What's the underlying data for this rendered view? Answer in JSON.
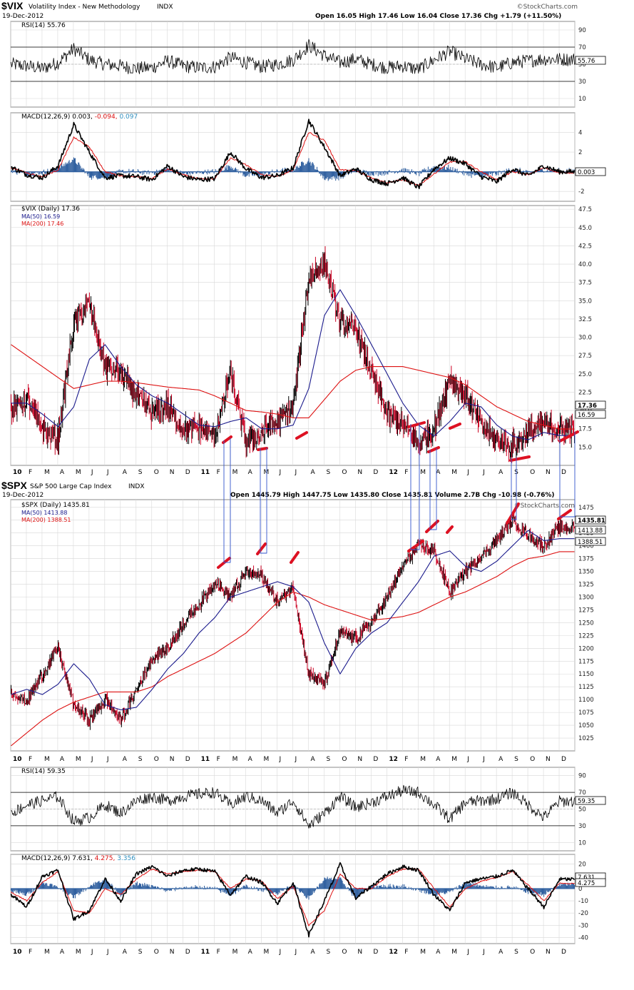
{
  "colors": {
    "price_up": "#000000",
    "price_down": "#cc0022",
    "ma50": "#1a1a8c",
    "ma200": "#dd1111",
    "macd_line": "#000000",
    "macd_signal": "#dd1111",
    "macd_hist": "#2f5f9f",
    "annotation_red": "#dd1122",
    "annotation_blue": "#3355cc",
    "grid": "#d8d8d8"
  },
  "vix": {
    "symbol": "$VIX",
    "name": "Volatility Index - New Methodology",
    "exchange": "INDX",
    "date": "19-Dec-2012",
    "quote": "Open 16.05  High 17.46  Low 16.04  Close 17.36  Chg +1.79 (+11.50%)",
    "watermark": "©StockCharts.com",
    "rsi_title": "RSI(14) 55.76",
    "rsi_value": "55.76",
    "macd_title_a": "MACD(12,26,9) 0.003, ",
    "macd_title_b": "-0.094, ",
    "macd_title_c": "0.097",
    "macd_value": "0.003",
    "main_title": "$VIX (Daily) 17.36",
    "ma50_label": "MA(50) 16.59",
    "ma200_label": "MA(200) 17.46",
    "last_price": "17.36",
    "last_ma50": "16.59"
  },
  "spx": {
    "symbol": "$SPX",
    "name": "S&P 500 Large Cap Index",
    "exchange": "INDX",
    "date": "19-Dec-2012",
    "quote": "Open 1445.79  High 1447.75  Low 1435.80  Close 1435.81  Volume 2.7B  Chg -10.98 (-0.76%)",
    "watermark": "©StockCharts.com",
    "main_title": "$SPX (Daily) 1435.81",
    "ma50_label": "MA(50) 1413.88",
    "ma200_label": "MA(200) 1388.51",
    "last_price": "1435.81",
    "last_ma50": "1413.88",
    "last_ma200": "1388.51",
    "rsi_title": "RSI(14) 59.35",
    "rsi_value": "59.35",
    "macd_title_a": "MACD(12,26,9) 7.631, ",
    "macd_title_b": "4.275, ",
    "macd_title_c": "3.356",
    "macd_value": "7.631",
    "macd_value2": "4.275"
  },
  "x_axis": {
    "labels": [
      "10",
      "F",
      "M",
      "A",
      "M",
      "J",
      "J",
      "A",
      "S",
      "O",
      "N",
      "D",
      "11",
      "F",
      "M",
      "A",
      "M",
      "J",
      "J",
      "A",
      "S",
      "O",
      "N",
      "D",
      "12",
      "F",
      "M",
      "A",
      "M",
      "J",
      "J",
      "A",
      "S",
      "O",
      "N",
      "D"
    ]
  },
  "chart_data": [
    {
      "type": "line",
      "title": "RSI(14) 55.76",
      "ylim": [
        0,
        100
      ],
      "yticks": [
        10,
        30,
        50,
        70,
        90
      ],
      "reference_lines": [
        30,
        70
      ],
      "x": [
        "2010-01",
        "2010-02",
        "2010-03",
        "2010-04",
        "2010-05",
        "2010-06",
        "2010-07",
        "2010-08",
        "2010-09",
        "2010-10",
        "2010-11",
        "2010-12",
        "2011-01",
        "2011-02",
        "2011-03",
        "2011-04",
        "2011-05",
        "2011-06",
        "2011-07",
        "2011-08",
        "2011-09",
        "2011-10",
        "2011-11",
        "2011-12",
        "2012-01",
        "2012-02",
        "2012-03",
        "2012-04",
        "2012-05",
        "2012-06",
        "2012-07",
        "2012-08",
        "2012-09",
        "2012-10",
        "2012-11",
        "2012-12"
      ],
      "values": [
        50,
        48,
        45,
        52,
        68,
        55,
        50,
        48,
        45,
        46,
        54,
        48,
        46,
        47,
        58,
        52,
        47,
        50,
        55,
        72,
        60,
        52,
        56,
        50,
        46,
        48,
        44,
        55,
        65,
        56,
        50,
        46,
        52,
        54,
        56,
        55.76
      ]
    },
    {
      "type": "line",
      "title": "MACD(12,26,9) 0.003, -0.094, 0.097",
      "ylim": [
        -3,
        6
      ],
      "yticks": [
        -2,
        0,
        2,
        4
      ],
      "series": [
        {
          "name": "MACD",
          "values": [
            0.5,
            -0.3,
            -0.6,
            0.6,
            4.8,
            2.0,
            -0.6,
            -0.4,
            -0.5,
            -0.8,
            0.6,
            -0.5,
            -0.8,
            -0.7,
            2.0,
            0.3,
            -0.6,
            -0.4,
            0.4,
            5.2,
            2.5,
            -0.4,
            0.3,
            -0.8,
            -1.2,
            -0.6,
            -1.6,
            0.3,
            1.4,
            0.8,
            -0.5,
            -1.0,
            0.3,
            -0.4,
            0.6,
            0.003
          ]
        },
        {
          "name": "Signal",
          "values": [
            0.4,
            -0.1,
            -0.5,
            0.2,
            3.5,
            2.5,
            0.0,
            -0.4,
            -0.5,
            -0.7,
            0.3,
            -0.3,
            -0.7,
            -0.7,
            1.4,
            0.7,
            -0.3,
            -0.5,
            0.2,
            4.0,
            3.2,
            0.2,
            0.1,
            -0.6,
            -1.1,
            -0.8,
            -1.4,
            -0.2,
            1.0,
            1.0,
            0.0,
            -0.8,
            0.0,
            -0.3,
            0.4,
            -0.094
          ]
        }
      ]
    },
    {
      "type": "line",
      "title": "$VIX (Daily) 17.36",
      "ylim": [
        12.5,
        48
      ],
      "yticks": [
        15.0,
        17.5,
        20.0,
        22.5,
        25.0,
        27.5,
        30.0,
        32.5,
        35.0,
        37.5,
        40.0,
        42.5,
        45.0,
        47.5
      ],
      "x": [
        "2010-01",
        "2010-02",
        "2010-03",
        "2010-04",
        "2010-05",
        "2010-06",
        "2010-07",
        "2010-08",
        "2010-09",
        "2010-10",
        "2010-11",
        "2010-12",
        "2011-01",
        "2011-02",
        "2011-03",
        "2011-04",
        "2011-05",
        "2011-06",
        "2011-07",
        "2011-08",
        "2011-09",
        "2011-10",
        "2011-11",
        "2011-12",
        "2012-01",
        "2012-02",
        "2012-03",
        "2012-04",
        "2012-05",
        "2012-06",
        "2012-07",
        "2012-08",
        "2012-09",
        "2012-10",
        "2012-11",
        "2012-12"
      ],
      "series": [
        {
          "name": "$VIX (Daily)",
          "values": [
            20.0,
            21.5,
            17.5,
            16.0,
            32.0,
            34.5,
            26.0,
            25.0,
            22.0,
            19.5,
            20.5,
            17.5,
            17.5,
            16.5,
            25.0,
            15.5,
            17.0,
            18.5,
            20.5,
            38.0,
            40.0,
            32.0,
            31.0,
            25.0,
            19.5,
            18.0,
            15.5,
            17.5,
            24.5,
            22.0,
            18.0,
            16.0,
            15.0,
            17.0,
            18.0,
            17.36
          ]
        },
        {
          "name": "MA(50)",
          "values": [
            21.0,
            21.0,
            19.5,
            17.8,
            20.5,
            27.0,
            29.0,
            26.0,
            23.5,
            22.0,
            21.0,
            19.5,
            18.0,
            17.8,
            18.5,
            19.0,
            17.5,
            17.5,
            18.0,
            23.0,
            33.0,
            36.5,
            33.0,
            29.0,
            25.0,
            21.0,
            18.0,
            16.5,
            18.5,
            21.0,
            20.5,
            18.0,
            16.5,
            16.0,
            17.0,
            16.59
          ]
        },
        {
          "name": "MA(200)",
          "values": [
            29.0,
            27.5,
            26.0,
            24.5,
            23.0,
            23.5,
            24.0,
            24.0,
            23.8,
            23.5,
            23.2,
            23.0,
            22.8,
            22.0,
            21.0,
            20.0,
            19.8,
            19.5,
            19.0,
            19.0,
            21.5,
            24.0,
            25.5,
            26.0,
            26.0,
            26.0,
            25.5,
            25.0,
            24.5,
            23.5,
            22.0,
            20.5,
            19.5,
            18.5,
            18.0,
            17.46
          ]
        }
      ]
    },
    {
      "type": "line",
      "title": "$SPX (Daily) 1435.81",
      "ylim": [
        1000,
        1490
      ],
      "yticks": [
        1025,
        1050,
        1075,
        1100,
        1125,
        1150,
        1175,
        1200,
        1225,
        1250,
        1275,
        1300,
        1325,
        1350,
        1375,
        1400,
        1425,
        1450,
        1475
      ],
      "x": [
        "2010-01",
        "2010-02",
        "2010-03",
        "2010-04",
        "2010-05",
        "2010-06",
        "2010-07",
        "2010-08",
        "2010-09",
        "2010-10",
        "2010-11",
        "2010-12",
        "2011-01",
        "2011-02",
        "2011-03",
        "2011-04",
        "2011-05",
        "2011-06",
        "2011-07",
        "2011-08",
        "2011-09",
        "2011-10",
        "2011-11",
        "2011-12",
        "2012-01",
        "2012-02",
        "2012-03",
        "2012-04",
        "2012-05",
        "2012-06",
        "2012-07",
        "2012-08",
        "2012-09",
        "2012-10",
        "2012-11",
        "2012-12"
      ],
      "series": [
        {
          "name": "$SPX (Daily)",
          "values": [
            1115,
            1095,
            1150,
            1200,
            1090,
            1060,
            1100,
            1060,
            1120,
            1180,
            1200,
            1250,
            1285,
            1330,
            1300,
            1350,
            1340,
            1290,
            1320,
            1150,
            1130,
            1230,
            1220,
            1250,
            1300,
            1360,
            1400,
            1390,
            1310,
            1350,
            1380,
            1410,
            1450,
            1420,
            1400,
            1435.81
          ]
        },
        {
          "name": "MA(50)",
          "values": [
            1110,
            1120,
            1110,
            1130,
            1170,
            1140,
            1090,
            1080,
            1085,
            1120,
            1160,
            1190,
            1230,
            1260,
            1300,
            1310,
            1320,
            1330,
            1320,
            1290,
            1210,
            1150,
            1200,
            1230,
            1250,
            1290,
            1330,
            1380,
            1390,
            1360,
            1350,
            1370,
            1400,
            1430,
            1410,
            1413.88
          ]
        },
        {
          "name": "MA(200)",
          "values": [
            1010,
            1035,
            1060,
            1080,
            1095,
            1105,
            1115,
            1115,
            1115,
            1125,
            1145,
            1160,
            1175,
            1190,
            1210,
            1230,
            1260,
            1290,
            1310,
            1300,
            1285,
            1275,
            1265,
            1255,
            1258,
            1262,
            1270,
            1285,
            1300,
            1310,
            1325,
            1340,
            1360,
            1375,
            1380,
            1388.51
          ]
        }
      ]
    },
    {
      "type": "line",
      "title": "RSI(14) 59.35",
      "ylim": [
        0,
        100
      ],
      "yticks": [
        10,
        30,
        50,
        70,
        90
      ],
      "reference_lines": [
        30,
        70
      ],
      "values": [
        45,
        55,
        60,
        65,
        35,
        40,
        55,
        45,
        60,
        65,
        60,
        65,
        68,
        70,
        55,
        65,
        60,
        45,
        60,
        30,
        45,
        65,
        52,
        58,
        65,
        72,
        70,
        55,
        38,
        58,
        60,
        62,
        70,
        55,
        40,
        59.35
      ]
    },
    {
      "type": "line",
      "title": "MACD(12,26,9) 7.631, 4.275, 3.356",
      "ylim": [
        -45,
        28
      ],
      "yticks": [
        -40,
        -30,
        -20,
        -10,
        0,
        10,
        20
      ],
      "series": [
        {
          "name": "MACD",
          "values": [
            -5,
            -15,
            10,
            15,
            -25,
            -18,
            8,
            -10,
            12,
            18,
            10,
            15,
            16,
            14,
            -5,
            10,
            5,
            -12,
            5,
            -38,
            -10,
            20,
            -8,
            2,
            12,
            18,
            15,
            -5,
            -18,
            5,
            8,
            10,
            15,
            0,
            -15,
            7.631
          ]
        },
        {
          "name": "Signal",
          "values": [
            -3,
            -10,
            5,
            14,
            -18,
            -20,
            0,
            -5,
            8,
            16,
            12,
            14,
            15,
            14,
            0,
            8,
            6,
            -8,
            2,
            -30,
            -18,
            12,
            0,
            0,
            10,
            16,
            16,
            0,
            -15,
            0,
            6,
            9,
            14,
            3,
            -10,
            4.275
          ]
        }
      ]
    }
  ],
  "annotations": {
    "red_marks": 15,
    "blue_link_lines": 10
  }
}
